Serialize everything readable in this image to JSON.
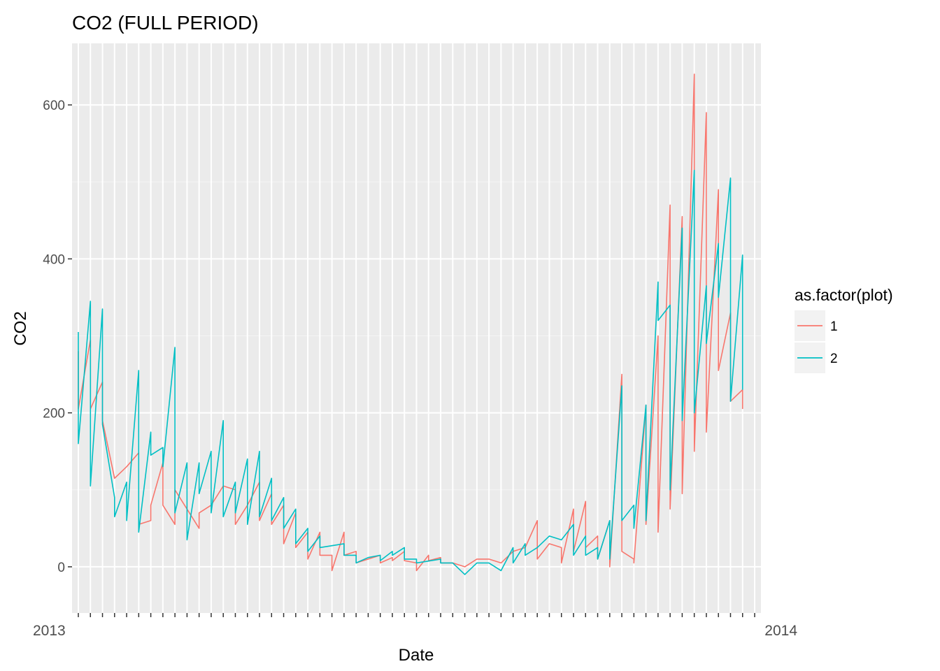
{
  "chart_data": {
    "type": "line",
    "title": "CO2 (FULL PERIOD)",
    "xlabel": "Date",
    "ylabel": "CO2",
    "ylim": [
      -60,
      680
    ],
    "yticks": [
      0,
      200,
      400,
      600
    ],
    "grid": true,
    "x_tick_count": 57,
    "x_tick_labels_visible": [
      "2013",
      "2014"
    ],
    "legend": {
      "title": "as.factor(plot)",
      "position": "right",
      "entries": [
        {
          "name": "1",
          "color": "#F8766D"
        },
        {
          "name": "2",
          "color": "#00BFC4"
        }
      ]
    },
    "series": [
      {
        "name": "1",
        "color": "#F8766D",
        "points": [
          [
            0,
            280
          ],
          [
            0,
            205
          ],
          [
            1,
            295
          ],
          [
            1,
            205
          ],
          [
            2,
            240
          ],
          [
            2,
            190
          ],
          [
            3,
            115
          ],
          [
            4,
            130
          ],
          [
            5,
            148
          ],
          [
            5,
            55
          ],
          [
            6,
            60
          ],
          [
            6,
            80
          ],
          [
            7,
            135
          ],
          [
            7,
            80
          ],
          [
            8,
            55
          ],
          [
            8,
            100
          ],
          [
            10,
            50
          ],
          [
            10,
            70
          ],
          [
            11,
            80
          ],
          [
            12,
            105
          ],
          [
            13,
            100
          ],
          [
            13,
            55
          ],
          [
            14,
            80
          ],
          [
            15,
            110
          ],
          [
            15,
            60
          ],
          [
            16,
            95
          ],
          [
            16,
            55
          ],
          [
            17,
            80
          ],
          [
            17,
            30
          ],
          [
            18,
            70
          ],
          [
            18,
            25
          ],
          [
            19,
            45
          ],
          [
            19,
            10
          ],
          [
            20,
            45
          ],
          [
            20,
            15
          ],
          [
            21,
            15
          ],
          [
            21,
            -5
          ],
          [
            22,
            45
          ],
          [
            22,
            15
          ],
          [
            23,
            20
          ],
          [
            23,
            5
          ],
          [
            24,
            10
          ],
          [
            25,
            15
          ],
          [
            25,
            5
          ],
          [
            26,
            12
          ],
          [
            26,
            8
          ],
          [
            27,
            20
          ],
          [
            27,
            8
          ],
          [
            28,
            5
          ],
          [
            28,
            -5
          ],
          [
            29,
            15
          ],
          [
            29,
            8
          ],
          [
            30,
            12
          ],
          [
            30,
            5
          ],
          [
            31,
            5
          ],
          [
            32,
            0
          ],
          [
            33,
            10
          ],
          [
            34,
            10
          ],
          [
            35,
            5
          ],
          [
            36,
            20
          ],
          [
            37,
            25
          ],
          [
            38,
            60
          ],
          [
            38,
            10
          ],
          [
            39,
            30
          ],
          [
            40,
            25
          ],
          [
            40,
            5
          ],
          [
            41,
            75
          ],
          [
            41,
            20
          ],
          [
            42,
            85
          ],
          [
            42,
            25
          ],
          [
            43,
            40
          ],
          [
            43,
            10
          ],
          [
            44,
            60
          ],
          [
            44,
            0
          ],
          [
            45,
            250
          ],
          [
            45,
            20
          ],
          [
            46,
            10
          ],
          [
            46,
            5
          ],
          [
            47,
            210
          ],
          [
            47,
            55
          ],
          [
            48,
            300
          ],
          [
            48,
            45
          ],
          [
            49,
            470
          ],
          [
            49,
            75
          ],
          [
            50,
            455
          ],
          [
            50,
            95
          ],
          [
            51,
            640
          ],
          [
            51,
            150
          ],
          [
            52,
            590
          ],
          [
            52,
            175
          ],
          [
            53,
            490
          ],
          [
            53,
            255
          ],
          [
            54,
            330
          ],
          [
            54,
            215
          ],
          [
            55,
            230
          ],
          [
            55,
            205
          ]
        ]
      },
      {
        "name": "2",
        "color": "#00BFC4",
        "points": [
          [
            0,
            305
          ],
          [
            0,
            160
          ],
          [
            1,
            345
          ],
          [
            1,
            105
          ],
          [
            2,
            335
          ],
          [
            2,
            185
          ],
          [
            3,
            90
          ],
          [
            3,
            65
          ],
          [
            4,
            110
          ],
          [
            4,
            60
          ],
          [
            5,
            255
          ],
          [
            5,
            45
          ],
          [
            6,
            175
          ],
          [
            6,
            145
          ],
          [
            7,
            155
          ],
          [
            7,
            130
          ],
          [
            8,
            285
          ],
          [
            8,
            70
          ],
          [
            9,
            135
          ],
          [
            9,
            35
          ],
          [
            10,
            135
          ],
          [
            10,
            95
          ],
          [
            11,
            150
          ],
          [
            11,
            70
          ],
          [
            12,
            190
          ],
          [
            12,
            65
          ],
          [
            13,
            110
          ],
          [
            13,
            70
          ],
          [
            14,
            140
          ],
          [
            14,
            55
          ],
          [
            15,
            150
          ],
          [
            15,
            65
          ],
          [
            16,
            115
          ],
          [
            16,
            60
          ],
          [
            17,
            90
          ],
          [
            17,
            50
          ],
          [
            18,
            75
          ],
          [
            18,
            30
          ],
          [
            19,
            50
          ],
          [
            19,
            20
          ],
          [
            20,
            40
          ],
          [
            20,
            25
          ],
          [
            22,
            30
          ],
          [
            22,
            15
          ],
          [
            23,
            15
          ],
          [
            23,
            5
          ],
          [
            24,
            12
          ],
          [
            25,
            15
          ],
          [
            25,
            8
          ],
          [
            26,
            20
          ],
          [
            26,
            15
          ],
          [
            27,
            25
          ],
          [
            27,
            10
          ],
          [
            28,
            10
          ],
          [
            28,
            5
          ],
          [
            30,
            10
          ],
          [
            30,
            5
          ],
          [
            31,
            5
          ],
          [
            32,
            -10
          ],
          [
            33,
            5
          ],
          [
            34,
            5
          ],
          [
            35,
            -5
          ],
          [
            36,
            25
          ],
          [
            36,
            5
          ],
          [
            37,
            30
          ],
          [
            37,
            15
          ],
          [
            38,
            25
          ],
          [
            39,
            40
          ],
          [
            40,
            35
          ],
          [
            41,
            55
          ],
          [
            41,
            15
          ],
          [
            42,
            40
          ],
          [
            42,
            15
          ],
          [
            43,
            25
          ],
          [
            43,
            10
          ],
          [
            44,
            60
          ],
          [
            44,
            10
          ],
          [
            45,
            235
          ],
          [
            45,
            60
          ],
          [
            46,
            80
          ],
          [
            46,
            50
          ],
          [
            47,
            210
          ],
          [
            47,
            60
          ],
          [
            48,
            370
          ],
          [
            48,
            320
          ],
          [
            49,
            340
          ],
          [
            49,
            100
          ],
          [
            50,
            440
          ],
          [
            50,
            190
          ],
          [
            51,
            515
          ],
          [
            51,
            200
          ],
          [
            52,
            365
          ],
          [
            52,
            290
          ],
          [
            53,
            420
          ],
          [
            53,
            350
          ],
          [
            54,
            505
          ],
          [
            54,
            215
          ],
          [
            55,
            405
          ],
          [
            55,
            230
          ]
        ]
      }
    ]
  }
}
